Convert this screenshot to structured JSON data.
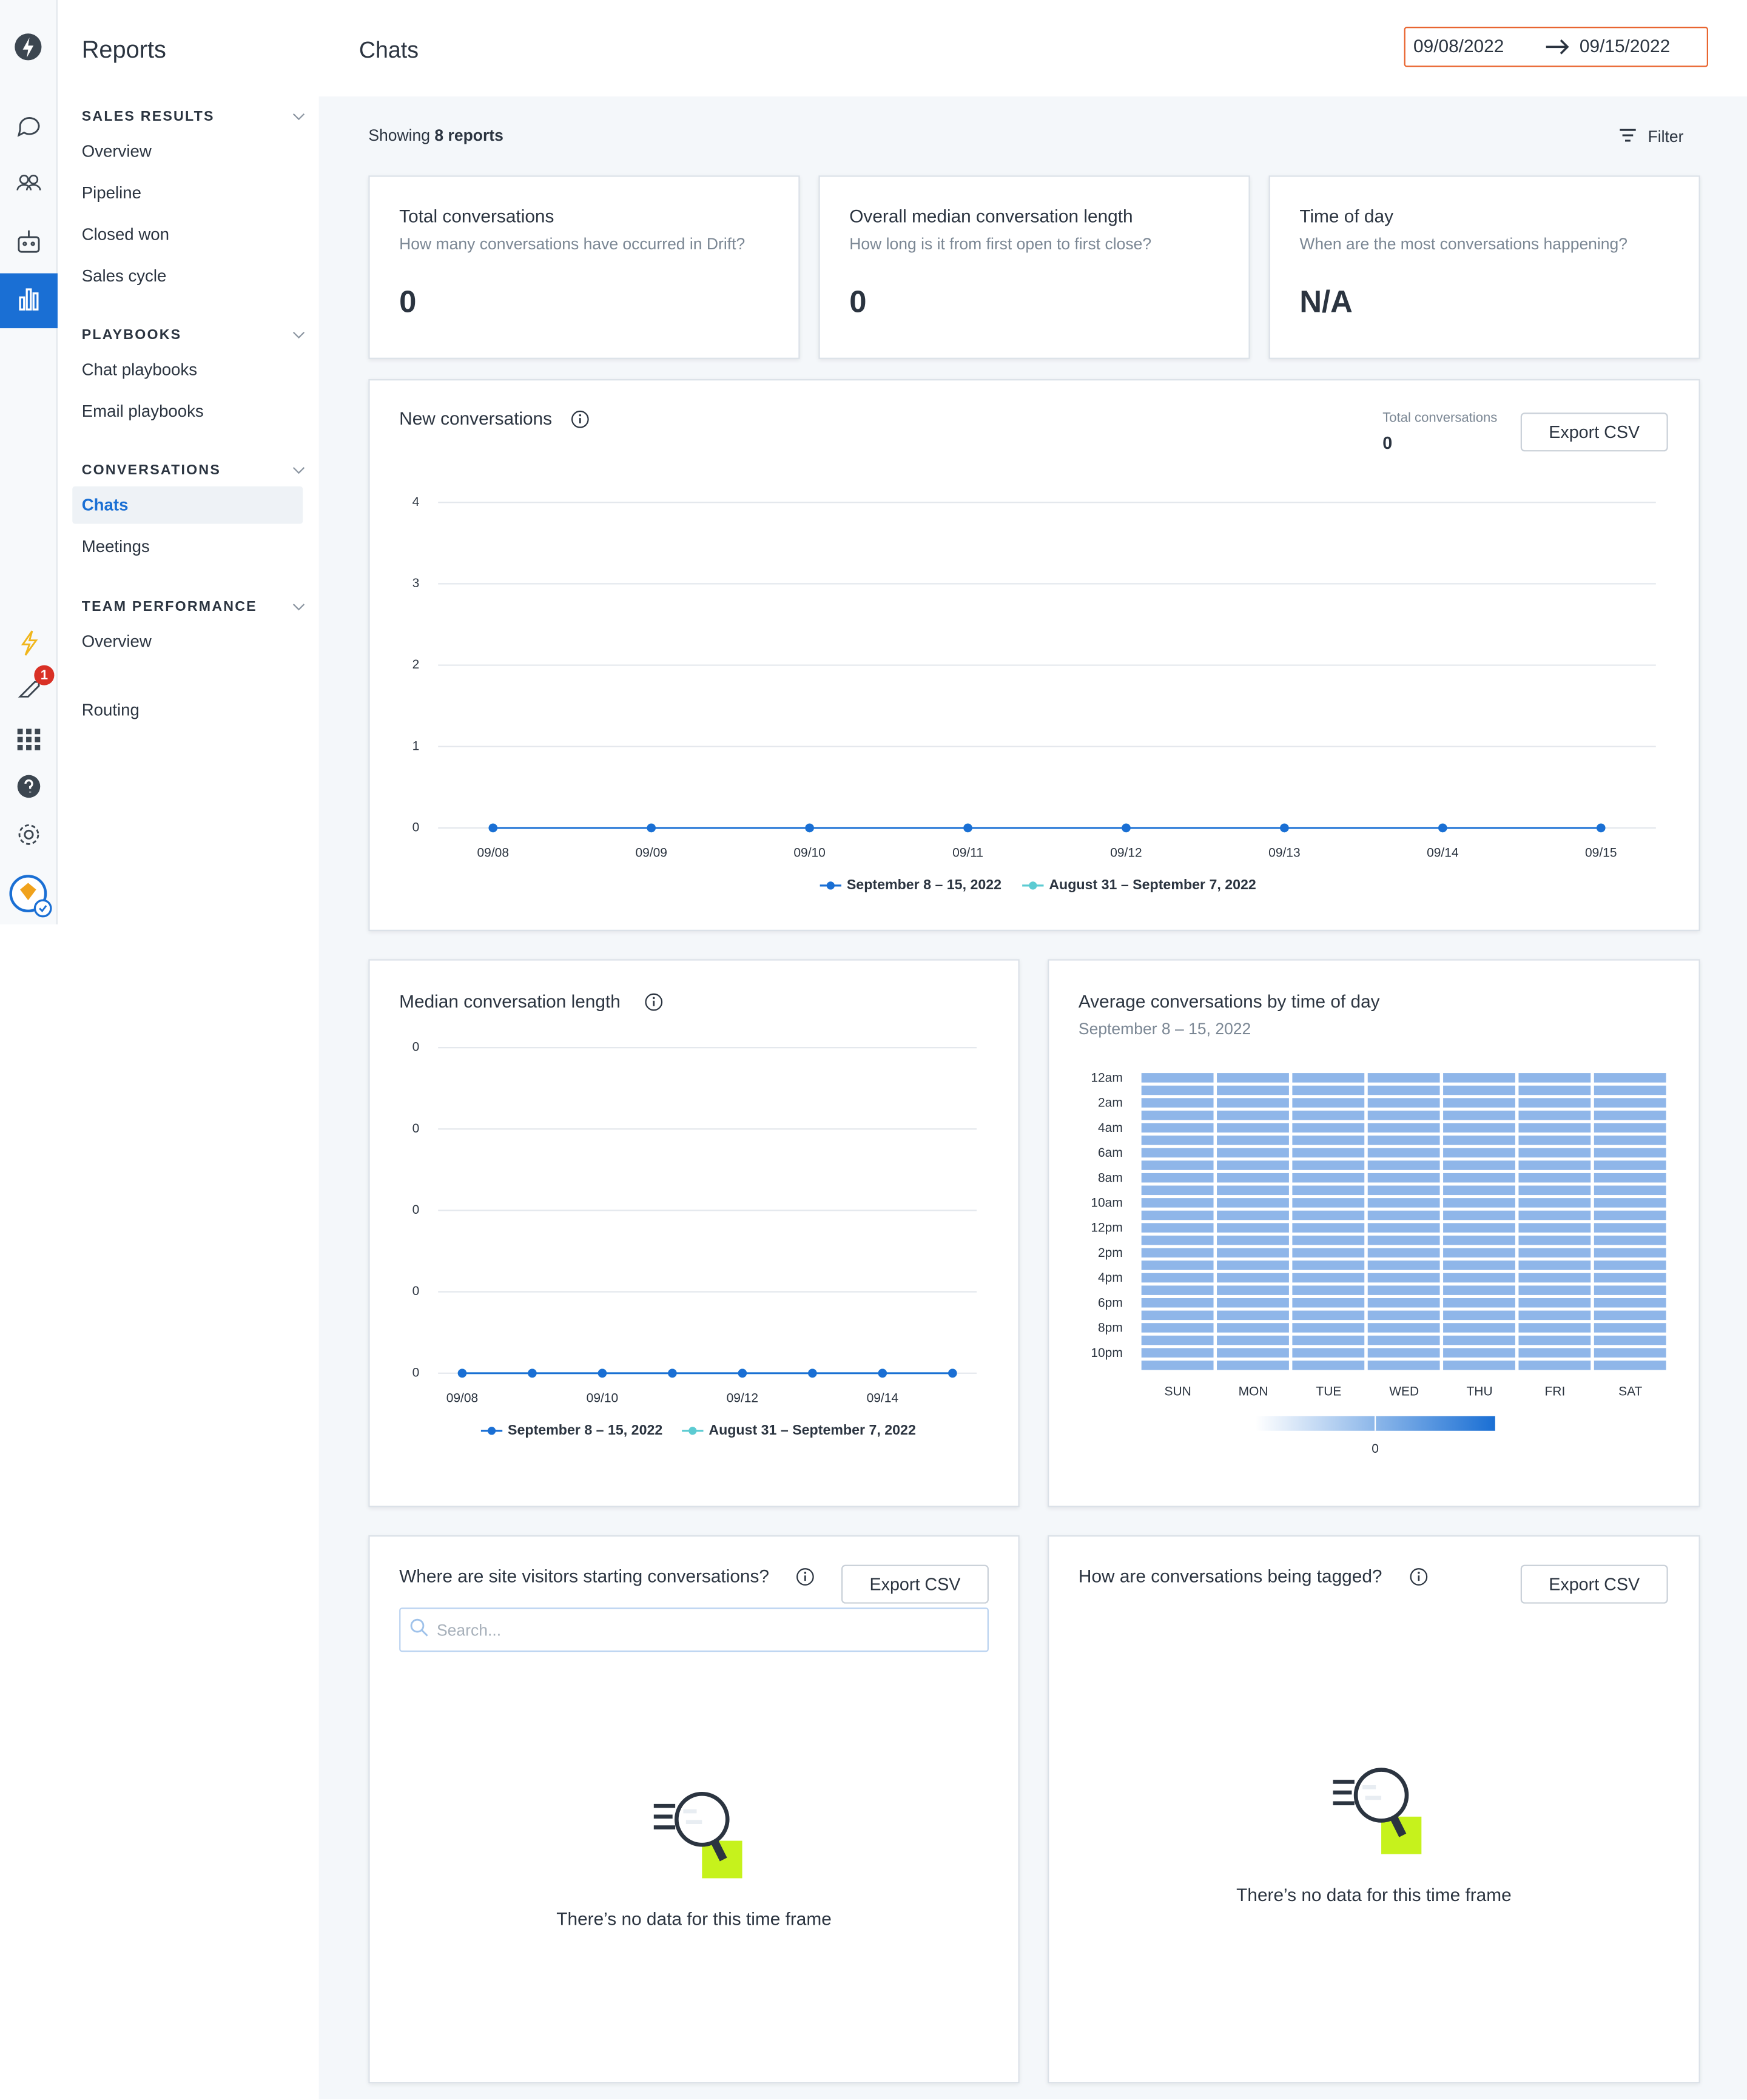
{
  "sidebar": {
    "title": "Reports",
    "active_item": "Chats",
    "sections": [
      {
        "title": "SALES RESULTS",
        "items": [
          "Overview",
          "Pipeline",
          "Closed won",
          "Sales cycle"
        ]
      },
      {
        "title": "PLAYBOOKS",
        "items": [
          "Chat playbooks",
          "Email playbooks"
        ]
      },
      {
        "title": "CONVERSATIONS",
        "items": [
          "Chats",
          "Meetings"
        ]
      },
      {
        "title": "TEAM PERFORMANCE",
        "items": [
          "Overview"
        ]
      }
    ],
    "extra_items": [
      "Routing"
    ]
  },
  "rail": {
    "badge": 1
  },
  "header": {
    "title": "Chats",
    "date_from": "09/08/2022",
    "date_to": "09/15/2022"
  },
  "toolbar": {
    "showing": "Showing",
    "count": "8 reports",
    "filter": "Filter"
  },
  "cards": [
    {
      "title": "Total conversations",
      "subtitle": "How many conversations have occurred in Drift?",
      "value": 0
    },
    {
      "title": "Overall median conversation length",
      "subtitle": "How long is it from first open to first close?",
      "value": 0
    },
    {
      "title": "Time of day",
      "subtitle": "When are the most conversations happening?",
      "value": "N/A"
    }
  ],
  "new_conversations": {
    "title": "New conversations",
    "total_label": "Total conversations",
    "total": 0,
    "button": "Export CSV",
    "chart_data": {
      "type": "line",
      "categories": [
        "09/08",
        "09/09",
        "09/10",
        "09/11",
        "09/12",
        "09/13",
        "09/14",
        "09/15"
      ],
      "series": [
        {
          "name": "September 8 – 15, 2022",
          "color": "#1a6fd4",
          "values": [
            0,
            0,
            0,
            0,
            0,
            0,
            0,
            0
          ]
        },
        {
          "name": "August 31 – September 7, 2022",
          "color": "#5ccbd2",
          "values": [
            0,
            0,
            0,
            0,
            0,
            0,
            0,
            0
          ]
        }
      ],
      "ylim": [
        0,
        4
      ],
      "yticks": [
        0,
        1,
        2,
        3,
        4
      ],
      "grid": true
    }
  },
  "median_length": {
    "title": "Median conversation length",
    "chart_data": {
      "type": "line",
      "categories": [
        "09/08",
        null,
        "09/10",
        null,
        "09/12",
        null,
        "09/14",
        null
      ],
      "series": [
        {
          "name": "September 8 – 15, 2022",
          "color": "#1a6fd4",
          "values": [
            0,
            0,
            0,
            0,
            0,
            0,
            0,
            0
          ]
        },
        {
          "name": "August 31 – September 7, 2022",
          "color": "#5ccbd2",
          "values": [
            0,
            0,
            0,
            0,
            0,
            0,
            0,
            0
          ]
        }
      ],
      "ylim": [
        0,
        0.4
      ],
      "yticks": [
        {
          "value": 0,
          "label": "0"
        },
        {
          "value": 0.1,
          "label": "0"
        },
        {
          "value": 0.2,
          "label": "0"
        },
        {
          "value": 0.3,
          "label": "0"
        },
        {
          "value": 0.4,
          "label": "0"
        }
      ],
      "grid": true
    }
  },
  "time_of_day": {
    "title": "Average conversations by time of day",
    "subtitle": "September 8 – 15, 2022",
    "chart_data": {
      "type": "heatmap",
      "cell_color": "#8fb6e9",
      "scale_colors": [
        "#ffffff",
        "#1a6fd4"
      ],
      "scale_ticks": [
        0
      ],
      "columns": [
        "SUN",
        "MON",
        "TUE",
        "WED",
        "THU",
        "FRI",
        "SAT"
      ],
      "rows": [
        "12am",
        null,
        "2am",
        null,
        "4am",
        null,
        "6am",
        null,
        "8am",
        null,
        "10am",
        null,
        "12pm",
        null,
        "2pm",
        null,
        "4pm",
        null,
        "6pm",
        null,
        "8pm",
        null,
        "10pm",
        null
      ],
      "values": [
        [
          0,
          0,
          0,
          0,
          0,
          0,
          0
        ],
        [
          0,
          0,
          0,
          0,
          0,
          0,
          0
        ],
        [
          0,
          0,
          0,
          0,
          0,
          0,
          0
        ],
        [
          0,
          0,
          0,
          0,
          0,
          0,
          0
        ],
        [
          0,
          0,
          0,
          0,
          0,
          0,
          0
        ],
        [
          0,
          0,
          0,
          0,
          0,
          0,
          0
        ],
        [
          0,
          0,
          0,
          0,
          0,
          0,
          0
        ],
        [
          0,
          0,
          0,
          0,
          0,
          0,
          0
        ],
        [
          0,
          0,
          0,
          0,
          0,
          0,
          0
        ],
        [
          0,
          0,
          0,
          0,
          0,
          0,
          0
        ],
        [
          0,
          0,
          0,
          0,
          0,
          0,
          0
        ],
        [
          0,
          0,
          0,
          0,
          0,
          0,
          0
        ],
        [
          0,
          0,
          0,
          0,
          0,
          0,
          0
        ],
        [
          0,
          0,
          0,
          0,
          0,
          0,
          0
        ],
        [
          0,
          0,
          0,
          0,
          0,
          0,
          0
        ],
        [
          0,
          0,
          0,
          0,
          0,
          0,
          0
        ],
        [
          0,
          0,
          0,
          0,
          0,
          0,
          0
        ],
        [
          0,
          0,
          0,
          0,
          0,
          0,
          0
        ],
        [
          0,
          0,
          0,
          0,
          0,
          0,
          0
        ],
        [
          0,
          0,
          0,
          0,
          0,
          0,
          0
        ],
        [
          0,
          0,
          0,
          0,
          0,
          0,
          0
        ],
        [
          0,
          0,
          0,
          0,
          0,
          0,
          0
        ],
        [
          0,
          0,
          0,
          0,
          0,
          0,
          0
        ],
        [
          0,
          0,
          0,
          0,
          0,
          0,
          0
        ]
      ]
    }
  },
  "site_visitors": {
    "title": "Where are site visitors starting conversations?",
    "button": "Export CSV",
    "search_placeholder": "Search...",
    "empty_message": "There’s no data for this time frame"
  },
  "tagging": {
    "title": "How are conversations being tagged?",
    "button": "Export CSV",
    "empty_message": "There’s no data for this time frame"
  }
}
